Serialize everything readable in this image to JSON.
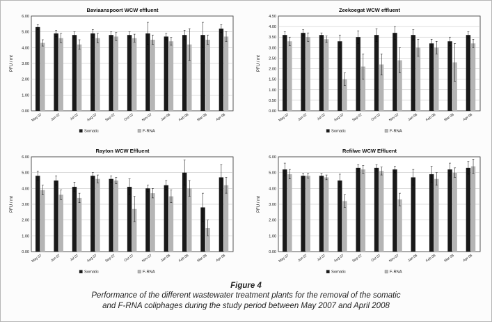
{
  "figure": {
    "caption_title": "Figure 4",
    "caption_line1": "Performance of the different wastewater treatment plants for the removal of the somatic",
    "caption_line2": "and F-RNA coliphages during the study period between May 2007 and April 2008"
  },
  "colors": {
    "somatic": "#1a1a1a",
    "frna": "#b5b5b5"
  },
  "chart_data": [
    {
      "type": "bar",
      "title": "Baviaanspoort WCW effluent",
      "ylabel": "PFU / mℓ",
      "ylim": [
        0,
        6
      ],
      "ytick_step": 1,
      "legend": [
        "Somatic",
        "F-RNA"
      ],
      "categories": [
        "May 07",
        "Jun 07",
        "Jul 07",
        "Aug 07",
        "Sep 07",
        "Oct 07",
        "Nov 07",
        "Jan 08",
        "Feb 08",
        "Mar 08",
        "Apr 08"
      ],
      "series": [
        {
          "name": "Somatic",
          "color": "#1a1a1a",
          "values": [
            5.3,
            4.9,
            4.8,
            4.9,
            4.8,
            4.8,
            4.9,
            4.7,
            4.8,
            4.8,
            5.2
          ],
          "errors": [
            0.15,
            0.2,
            0.2,
            0.25,
            0.2,
            0.2,
            0.7,
            0.2,
            0.3,
            0.8,
            0.25
          ]
        },
        {
          "name": "F-RNA",
          "color": "#b5b5b5",
          "values": [
            4.3,
            4.6,
            4.2,
            4.6,
            4.7,
            4.6,
            4.5,
            4.4,
            4.2,
            4.5,
            4.7
          ],
          "errors": [
            0.2,
            0.3,
            0.3,
            0.3,
            0.25,
            0.25,
            0.3,
            0.25,
            1.0,
            0.3,
            0.3
          ]
        }
      ]
    },
    {
      "type": "bar",
      "title": "Zeekoegat WCW effluent",
      "ylabel": "PFU / mℓ",
      "ylim": [
        0,
        4.5
      ],
      "ytick_step": 0.5,
      "legend": [
        "Somatic",
        "F-RNA"
      ],
      "categories": [
        "May 07",
        "Jun 07",
        "Jul 07",
        "Aug 07",
        "Sep 07",
        "Oct 07",
        "Nov 07",
        "Jan 08",
        "Feb 08",
        "Mar 08",
        "Apr 08"
      ],
      "series": [
        {
          "name": "Somatic",
          "color": "#1a1a1a",
          "values": [
            3.6,
            3.7,
            3.6,
            3.3,
            3.5,
            3.6,
            3.7,
            3.6,
            3.2,
            3.3,
            3.6
          ],
          "errors": [
            0.15,
            0.15,
            0.1,
            0.3,
            0.3,
            0.3,
            0.3,
            0.25,
            0.2,
            0.2,
            0.15
          ]
        },
        {
          "name": "F-RNA",
          "color": "#b5b5b5",
          "values": [
            3.3,
            3.5,
            3.4,
            1.5,
            2.1,
            2.2,
            2.4,
            3.0,
            3.0,
            2.3,
            3.2
          ],
          "errors": [
            0.2,
            0.2,
            0.15,
            0.3,
            0.6,
            0.5,
            0.6,
            0.4,
            0.3,
            0.9,
            0.2
          ]
        }
      ]
    },
    {
      "type": "bar",
      "title": "Rayton WCW Effluent",
      "ylabel": "PFU / mℓ",
      "ylim": [
        0,
        6
      ],
      "ytick_step": 1,
      "legend": [
        "Somatic",
        "F-RNA"
      ],
      "categories": [
        "May 07",
        "Jun 07",
        "Jul 07",
        "Aug 07",
        "Sep 07",
        "Oct 07",
        "Nov 07",
        "Jan 08",
        "Feb 08",
        "Mar 08",
        "Apr 08"
      ],
      "series": [
        {
          "name": "Somatic",
          "color": "#1a1a1a",
          "values": [
            4.8,
            4.5,
            4.1,
            4.8,
            4.6,
            4.1,
            4.0,
            4.2,
            5.0,
            2.8,
            4.7
          ],
          "errors": [
            0.3,
            0.3,
            0.3,
            0.2,
            0.2,
            0.5,
            0.2,
            0.3,
            0.8,
            0.9,
            0.8
          ]
        },
        {
          "name": "F-RNA",
          "color": "#b5b5b5",
          "values": [
            3.9,
            3.6,
            3.4,
            4.6,
            4.5,
            2.7,
            3.7,
            3.5,
            4.0,
            1.5,
            4.2
          ],
          "errors": [
            0.3,
            0.3,
            0.3,
            0.25,
            0.2,
            0.8,
            0.3,
            0.4,
            0.5,
            0.5,
            0.5
          ]
        }
      ]
    },
    {
      "type": "bar",
      "title": "Refilwe WCW Effluent",
      "ylabel": "PFU / mℓ",
      "ylim": [
        0,
        6
      ],
      "ytick_step": 1,
      "legend": [
        "Somatic",
        "F-RNA"
      ],
      "categories": [
        "May 07",
        "Jun 07",
        "Jul 07",
        "Aug 07",
        "Sep 07",
        "Oct 07",
        "Nov 07",
        "Jan 08",
        "Feb 08",
        "Mar 08",
        "Apr 08"
      ],
      "series": [
        {
          "name": "Somatic",
          "color": "#1a1a1a",
          "values": [
            5.2,
            4.8,
            4.8,
            4.5,
            5.3,
            5.3,
            5.2,
            4.7,
            4.9,
            5.2,
            5.3
          ],
          "errors": [
            0.4,
            0.15,
            0.15,
            0.4,
            0.2,
            0.2,
            0.2,
            0.5,
            0.5,
            0.4,
            0.4
          ]
        },
        {
          "name": "F-RNA",
          "color": "#b5b5b5",
          "values": [
            4.9,
            4.8,
            4.7,
            3.2,
            5.2,
            5.1,
            3.3,
            0,
            4.6,
            5.0,
            5.4
          ],
          "errors": [
            0.3,
            0.15,
            0.15,
            0.4,
            0.25,
            0.25,
            0.4,
            0,
            0.4,
            0.3,
            0.45
          ]
        }
      ]
    }
  ]
}
